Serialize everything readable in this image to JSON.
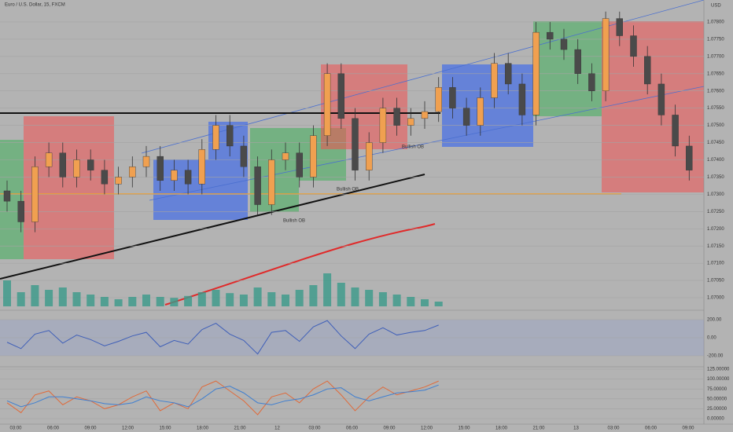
{
  "chart_data": {
    "type": "candlestick",
    "title": "Euro / U.S. Dollar, 15, FXCM",
    "currency": "USD",
    "annotations": [
      "Bullish OB",
      "Bullish OB",
      "Bullish OB"
    ],
    "up_color": "#f0a050",
    "down_color": "#4a4a4a",
    "open": [
      1.0731,
      1.0728,
      1.0722,
      1.0738,
      1.0742,
      1.0735,
      1.074,
      1.0737,
      1.0733,
      1.0735,
      1.0738,
      1.0741,
      1.0734,
      1.0737,
      1.0733,
      1.0743,
      1.075,
      1.0744,
      1.0738,
      1.0727,
      1.074,
      1.0742,
      1.0735,
      1.0747,
      1.0765,
      1.0752,
      1.0737,
      1.0745,
      1.0755,
      1.075,
      1.0752,
      1.0754,
      1.0761,
      1.0755,
      1.075,
      1.0758,
      1.0768,
      1.0762,
      1.0753,
      1.0777,
      1.0775,
      1.0772,
      1.0765,
      1.076,
      1.0781,
      1.0776,
      1.077,
      1.0762,
      1.0753,
      1.0744
    ],
    "high": [
      1.0734,
      1.0731,
      1.0741,
      1.0745,
      1.0745,
      1.0743,
      1.0743,
      1.074,
      1.0738,
      1.0741,
      1.0744,
      1.0744,
      1.074,
      1.074,
      1.0746,
      1.0753,
      1.0753,
      1.0747,
      1.0741,
      1.0743,
      1.0745,
      1.0745,
      1.075,
      1.0768,
      1.0768,
      1.0755,
      1.0748,
      1.0758,
      1.0758,
      1.0755,
      1.0757,
      1.0764,
      1.0764,
      1.0758,
      1.0761,
      1.0771,
      1.0771,
      1.0765,
      1.078,
      1.078,
      1.0778,
      1.0775,
      1.0768,
      1.0783,
      1.0783,
      1.0779,
      1.0773,
      1.0765,
      1.0756,
      1.0747
    ],
    "low": [
      1.0725,
      1.0719,
      1.0719,
      1.0735,
      1.0732,
      1.0732,
      1.0734,
      1.073,
      1.073,
      1.0732,
      1.0735,
      1.0731,
      1.0731,
      1.073,
      1.073,
      1.074,
      1.0741,
      1.0735,
      1.0724,
      1.0724,
      1.0737,
      1.0732,
      1.0732,
      1.0744,
      1.0749,
      1.0734,
      1.0734,
      1.0742,
      1.0747,
      1.0747,
      1.0749,
      1.0751,
      1.0752,
      1.0747,
      1.0747,
      1.0755,
      1.0759,
      1.075,
      1.075,
      1.0772,
      1.0769,
      1.0762,
      1.0757,
      1.0757,
      1.0773,
      1.0767,
      1.0759,
      1.075,
      1.0741,
      1.0734
    ],
    "close": [
      1.0728,
      1.0722,
      1.0738,
      1.0742,
      1.0735,
      1.074,
      1.0737,
      1.0733,
      1.0735,
      1.0738,
      1.0741,
      1.0734,
      1.0737,
      1.0733,
      1.0743,
      1.075,
      1.0744,
      1.0738,
      1.0727,
      1.074,
      1.0742,
      1.0735,
      1.0747,
      1.0765,
      1.0752,
      1.0737,
      1.0745,
      1.0755,
      1.075,
      1.0752,
      1.0754,
      1.0761,
      1.0755,
      1.075,
      1.0758,
      1.0768,
      1.0762,
      1.0753,
      1.0777,
      1.0775,
      1.0772,
      1.0765,
      1.076,
      1.0781,
      1.0776,
      1.077,
      1.0762,
      1.0753,
      1.0744,
      1.0737
    ],
    "volume": {
      "color": "#3a9a8a",
      "ylim": [
        0,
        100
      ],
      "values": [
        55,
        30,
        45,
        35,
        40,
        30,
        25,
        20,
        15,
        20,
        25,
        20,
        18,
        22,
        30,
        35,
        28,
        25,
        40,
        30,
        25,
        35,
        45,
        70,
        50,
        40,
        35,
        30,
        25,
        20,
        15,
        10,
        null,
        null,
        null,
        null,
        null,
        null,
        null,
        null,
        null,
        null,
        null,
        null,
        null,
        null,
        null,
        null,
        null,
        null
      ]
    },
    "ylim": [
      1.0699,
      1.0783
    ],
    "yticks": [
      {
        "value": 1.07,
        "label": "1.07000"
      },
      {
        "value": 1.0705,
        "label": "1.07050"
      },
      {
        "value": 1.071,
        "label": "1.07100"
      },
      {
        "value": 1.0715,
        "label": "1.07150"
      },
      {
        "value": 1.072,
        "label": "1.07200"
      },
      {
        "value": 1.0725,
        "label": "1.07250"
      },
      {
        "value": 1.073,
        "label": "1.07300"
      },
      {
        "value": 1.0735,
        "label": "1.07350"
      },
      {
        "value": 1.074,
        "label": "1.07400"
      },
      {
        "value": 1.0745,
        "label": "1.07450"
      },
      {
        "value": 1.075,
        "label": "1.07500"
      },
      {
        "value": 1.0755,
        "label": "1.07550"
      },
      {
        "value": 1.076,
        "label": "1.07600"
      },
      {
        "value": 1.0765,
        "label": "1.07650"
      },
      {
        "value": 1.077,
        "label": "1.07700"
      },
      {
        "value": 1.0775,
        "label": "1.07750"
      },
      {
        "value": 1.078,
        "label": "1.07800"
      }
    ],
    "time_labels": [
      "03:00",
      "06:00",
      "09:00",
      "12:00",
      "15:00",
      "18:00",
      "21:00",
      "12",
      "03:00",
      "06:00",
      "09:00",
      "12:00",
      "15:00",
      "18:00",
      "21:00",
      "13",
      "03:00",
      "06:00",
      "09:00"
    ],
    "cci": {
      "color": "#3f5fb8",
      "ylim": [
        -300,
        300
      ],
      "yticks": [
        {
          "value": 200,
          "label": "200.00"
        },
        {
          "value": 0,
          "label": "0.00"
        },
        {
          "value": -200,
          "label": "-200.00"
        }
      ],
      "values": [
        -50,
        -120,
        40,
        80,
        -60,
        30,
        -20,
        -90,
        -40,
        20,
        60,
        -100,
        -30,
        -70,
        90,
        160,
        40,
        -30,
        -180,
        60,
        80,
        -40,
        120,
        190,
        20,
        -120,
        40,
        110,
        30,
        60,
        80,
        140
      ]
    },
    "stoch": {
      "ylim": [
        0,
        125
      ],
      "yticks": [
        {
          "value": 125,
          "label": "125.00000"
        },
        {
          "value": 100,
          "label": "100.00000"
        },
        {
          "value": 75,
          "label": "75.00000"
        },
        {
          "value": 50,
          "label": "50.00000"
        },
        {
          "value": 25,
          "label": "25.00000"
        },
        {
          "value": 0,
          "label": "0.00000"
        }
      ],
      "series": [
        {
          "color": "#e06a3a",
          "values": [
            40,
            15,
            60,
            70,
            35,
            55,
            45,
            25,
            35,
            55,
            70,
            20,
            40,
            25,
            80,
            95,
            70,
            45,
            10,
            55,
            65,
            40,
            75,
            95,
            60,
            20,
            55,
            80,
            60,
            70,
            80,
            95
          ]
        },
        {
          "color": "#3f7fd0",
          "values": [
            45,
            30,
            40,
            55,
            55,
            50,
            45,
            38,
            35,
            40,
            55,
            45,
            40,
            30,
            50,
            75,
            82,
            65,
            40,
            35,
            45,
            50,
            60,
            75,
            78,
            55,
            45,
            55,
            65,
            68,
            72,
            85
          ]
        }
      ]
    }
  }
}
